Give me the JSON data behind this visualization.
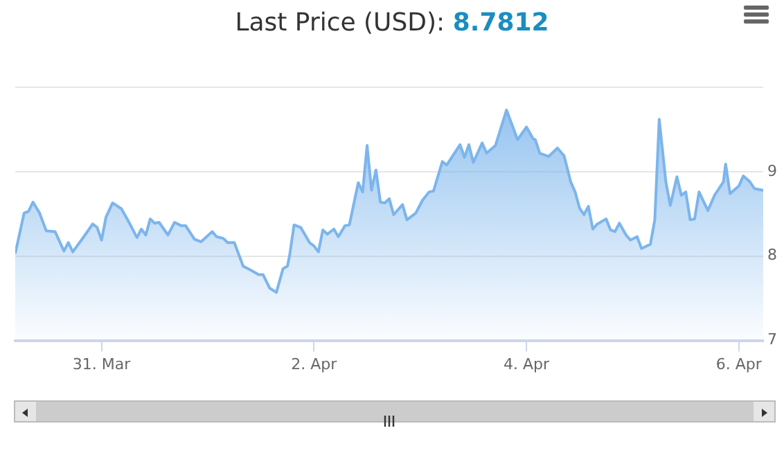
{
  "chart_data": {
    "type": "area",
    "title": "Last Price (USD):",
    "subtitle": "8.7812",
    "x": [
      "--03-30T04:30",
      "--03-30T06:30",
      "--03-30T07:30",
      "--03-30T08:30",
      "--03-30T10:00",
      "--03-30T11:30",
      "--03-30T13:30",
      "--03-30T15:30",
      "--03-30T16:30",
      "--03-30T17:30",
      "--03-30T20:00",
      "--03-30T22:00",
      "--03-30T23:00",
      "--03-31T00:00",
      "--03-31T01:00",
      "--03-31T02:30",
      "--03-31T04:30",
      "--03-31T06:00",
      "--03-31T08:00",
      "--03-31T09:00",
      "--03-31T10:00",
      "--03-31T11:00",
      "--03-31T12:00",
      "--03-31T13:00",
      "--03-31T15:00",
      "--03-31T16:30",
      "--03-31T18:00",
      "--03-31T19:00",
      "--03-31T21:00",
      "--03-31T22:30",
      "--04-01T01:00",
      "--04-01T02:00",
      "--04-01T03:30",
      "--04-01T04:30",
      "--04-01T06:00",
      "--04-01T08:00",
      "--04-01T09:30",
      "--04-01T11:30",
      "--04-01T12:30",
      "--04-01T14:00",
      "--04-01T15:30",
      "--04-01T17:00",
      "--04-01T18:00",
      "--04-01T18:30",
      "--04-01T19:30",
      "--04-01T21:00",
      "--04-01T23:00",
      "--04-02T00:00",
      "--04-02T01:00",
      "--04-02T02:00",
      "--04-02T03:00",
      "--04-02T04:30",
      "--04-02T05:30",
      "--04-02T07:00",
      "--04-02T08:00",
      "--04-02T10:00",
      "--04-02T11:00",
      "--04-02T12:00",
      "--04-02T13:00",
      "--04-02T14:00",
      "--04-02T15:00",
      "--04-02T16:00",
      "--04-02T17:00",
      "--04-02T18:00",
      "--04-02T20:00",
      "--04-02T21:00",
      "--04-02T23:00",
      "--04-03T00:30",
      "--04-03T02:00",
      "--04-03T03:00",
      "--04-03T05:00",
      "--04-03T06:00",
      "--04-03T09:00",
      "--04-03T10:00",
      "--04-03T11:00",
      "--04-03T12:00",
      "--04-03T14:00",
      "--04-03T15:00",
      "--04-03T17:00",
      "--04-03T19:30",
      "--04-03T22:00",
      "--04-04T00:00",
      "--04-04T01:30",
      "--04-04T02:00",
      "--04-04T03:00",
      "--04-04T05:00",
      "--04-04T07:00",
      "--04-04T08:30",
      "--04-04T10:00",
      "--04-04T11:00",
      "--04-04T12:00",
      "--04-04T13:00",
      "--04-04T14:00",
      "--04-04T15:00",
      "--04-04T16:00",
      "--04-04T18:00",
      "--04-04T19:00",
      "--04-04T20:00",
      "--04-04T21:00",
      "--04-04T22:30",
      "--04-04T23:30",
      "--04-05T01:00",
      "--04-05T02:00",
      "--04-05T04:00",
      "--04-05T05:00",
      "--04-05T06:00",
      "--04-05T07:30",
      "--04-05T08:30",
      "--04-05T10:00",
      "--04-05T11:00",
      "--04-05T12:00",
      "--04-05T13:00",
      "--04-05T14:00",
      "--04-05T15:00",
      "--04-05T17:00",
      "--04-05T18:30",
      "--04-05T20:30",
      "--04-05T21:00",
      "--04-05T22:00",
      "--04-06T00:00",
      "--04-06T01:00",
      "--04-06T02:30",
      "--04-06T03:30",
      "--04-06T05:30"
    ],
    "series": [
      {
        "color": "#7cb5ec",
        "values": [
          8.03,
          8.51,
          8.53,
          8.64,
          8.51,
          8.3,
          8.29,
          8.06,
          8.16,
          8.05,
          8.23,
          8.38,
          8.34,
          8.19,
          8.46,
          8.63,
          8.56,
          8.42,
          8.22,
          8.32,
          8.25,
          8.44,
          8.39,
          8.4,
          8.25,
          8.4,
          8.36,
          8.36,
          8.2,
          8.17,
          8.29,
          8.23,
          8.21,
          8.16,
          8.16,
          7.88,
          7.84,
          7.78,
          7.78,
          7.62,
          7.57,
          7.85,
          7.88,
          8.01,
          8.37,
          8.34,
          8.16,
          8.12,
          8.05,
          8.31,
          8.26,
          8.32,
          8.23,
          8.36,
          8.37,
          8.87,
          8.76,
          9.31,
          8.78,
          9.02,
          8.64,
          8.63,
          8.68,
          8.49,
          8.61,
          8.43,
          8.51,
          8.66,
          8.76,
          8.77,
          9.12,
          9.08,
          9.32,
          9.17,
          9.32,
          9.11,
          9.34,
          9.22,
          9.31,
          9.73,
          9.38,
          9.53,
          9.39,
          9.38,
          9.22,
          9.18,
          9.28,
          9.19,
          8.88,
          8.76,
          8.57,
          8.49,
          8.59,
          8.32,
          8.38,
          8.44,
          8.31,
          8.29,
          8.39,
          8.25,
          8.19,
          8.23,
          8.09,
          8.14,
          8.43,
          9.62,
          8.88,
          8.6,
          8.94,
          8.72,
          8.76,
          8.43,
          8.44,
          8.76,
          8.54,
          8.72,
          8.88,
          9.09,
          8.74,
          8.83,
          8.95,
          8.88,
          8.8,
          8.78
        ]
      }
    ],
    "xlim": [
      "--03-30T04:30",
      "--04-06T05:30"
    ],
    "xticks": [
      {
        "value": "--03-31",
        "label": "31. Mar"
      },
      {
        "value": "--04-02",
        "label": "2. Apr"
      },
      {
        "value": "--04-04",
        "label": "4. Apr"
      },
      {
        "value": "--04-06",
        "label": "6. Apr"
      }
    ],
    "ylim": [
      7,
      10
    ],
    "yticks": [
      7,
      8,
      9,
      {
        "value": 10,
        "label": null
      }
    ],
    "grid": "y",
    "legend": false,
    "marker": "none",
    "line_style": "solid"
  }
}
